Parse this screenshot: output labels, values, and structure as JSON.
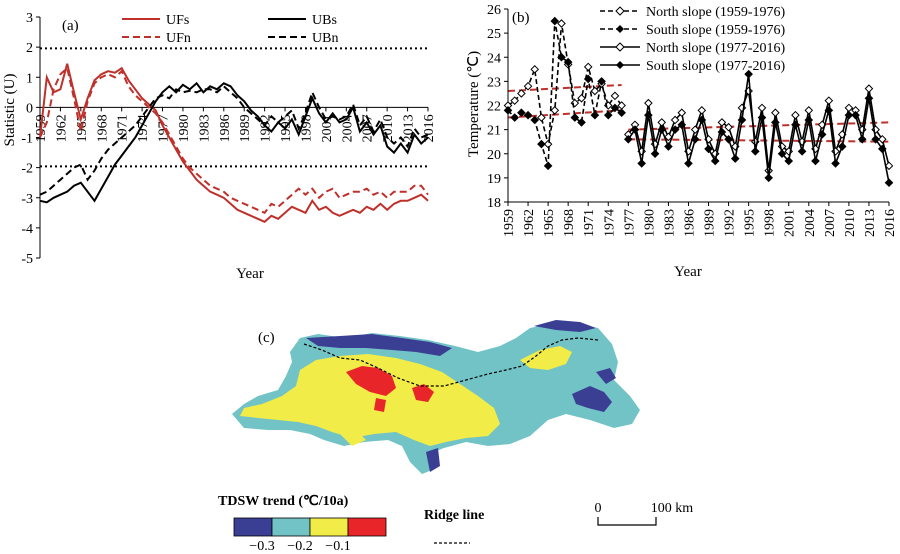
{
  "chart_data": [
    {
      "type": "line",
      "panel_label": "(a)",
      "xlabel": "Year",
      "ylabel": "Statistic (U)",
      "ylim": [
        -5,
        3
      ],
      "yticks": [
        "3",
        "2",
        "1",
        "0",
        "-1",
        "-2",
        "-3",
        "-4",
        "-5"
      ],
      "xlim": [
        1959,
        2016
      ],
      "xticks": [
        "1959",
        "1962",
        "1965",
        "1968",
        "1971",
        "1974",
        "1977",
        "1980",
        "1983",
        "1986",
        "1989",
        "1992",
        "1995",
        "1998",
        "2001",
        "2004",
        "2007",
        "2010",
        "2013",
        "2016"
      ],
      "reference_lines": [
        1.96,
        -1.96
      ],
      "legend": [
        "UFs",
        "UBs",
        "UFn",
        "UBn"
      ],
      "legend_placement": "top",
      "series": [
        {
          "name": "UFs",
          "color": "#c0302a",
          "dash": "solid",
          "x": [
            1959,
            1960,
            1961,
            1962,
            1963,
            1964,
            1965,
            1966,
            1967,
            1968,
            1969,
            1970,
            1971,
            1972,
            1973,
            1974,
            1975,
            1976,
            1977,
            1978,
            1979,
            1980,
            1981,
            1982,
            1983,
            1984,
            1985,
            1986,
            1987,
            1988,
            1989,
            1990,
            1991,
            1992,
            1993,
            1994,
            1995,
            1996,
            1997,
            1998,
            1999,
            2000,
            2001,
            2002,
            2003,
            2004,
            2005,
            2006,
            2007,
            2008,
            2009,
            2010,
            2011,
            2012,
            2013,
            2014,
            2015,
            2016
          ],
          "y": [
            -1.0,
            1.0,
            0.5,
            0.6,
            1.45,
            0.5,
            -0.4,
            0.3,
            0.9,
            1.1,
            1.2,
            1.15,
            1.3,
            0.9,
            0.6,
            0.3,
            0.1,
            -0.1,
            -0.6,
            -1.0,
            -1.4,
            -1.8,
            -2.1,
            -2.4,
            -2.6,
            -2.8,
            -2.9,
            -3.0,
            -3.2,
            -3.4,
            -3.5,
            -3.6,
            -3.7,
            -3.8,
            -3.6,
            -3.7,
            -3.5,
            -3.3,
            -3.4,
            -3.5,
            -3.1,
            -3.4,
            -3.3,
            -3.5,
            -3.6,
            -3.5,
            -3.4,
            -3.5,
            -3.3,
            -3.4,
            -3.2,
            -3.4,
            -3.2,
            -3.1,
            -3.1,
            -3.0,
            -2.9,
            -3.1
          ]
        },
        {
          "name": "UFn",
          "color": "#c0302a",
          "dash": "dash",
          "x": [
            1959,
            1960,
            1961,
            1962,
            1963,
            1964,
            1965,
            1966,
            1967,
            1968,
            1969,
            1970,
            1971,
            1972,
            1973,
            1974,
            1975,
            1976,
            1977,
            1978,
            1979,
            1980,
            1981,
            1982,
            1983,
            1984,
            1985,
            1986,
            1987,
            1988,
            1989,
            1990,
            1991,
            1992,
            1993,
            1994,
            1995,
            1996,
            1997,
            1998,
            1999,
            2000,
            2001,
            2002,
            2003,
            2004,
            2005,
            2006,
            2007,
            2008,
            2009,
            2010,
            2011,
            2012,
            2013,
            2014,
            2015,
            2016
          ],
          "y": [
            -1.0,
            -0.5,
            0.6,
            1.1,
            1.3,
            0.3,
            -0.8,
            0.2,
            0.8,
            1.0,
            1.1,
            1.0,
            1.2,
            0.7,
            0.4,
            0.2,
            0.0,
            -0.2,
            -0.5,
            -0.9,
            -1.3,
            -1.7,
            -2.0,
            -2.2,
            -2.4,
            -2.6,
            -2.7,
            -2.8,
            -3.0,
            -3.1,
            -3.2,
            -3.3,
            -3.4,
            -3.5,
            -3.2,
            -3.3,
            -3.1,
            -2.9,
            -2.7,
            -2.9,
            -2.7,
            -3.0,
            -2.8,
            -2.7,
            -3.0,
            -2.9,
            -2.8,
            -2.8,
            -2.7,
            -2.9,
            -2.8,
            -3.0,
            -2.8,
            -2.8,
            -2.8,
            -2.6,
            -2.6,
            -2.9
          ]
        },
        {
          "name": "UBs",
          "color": "#000000",
          "dash": "solid",
          "x": [
            1959,
            1960,
            1961,
            1962,
            1963,
            1964,
            1965,
            1966,
            1967,
            1968,
            1969,
            1970,
            1971,
            1972,
            1973,
            1974,
            1975,
            1976,
            1977,
            1978,
            1979,
            1980,
            1981,
            1982,
            1983,
            1984,
            1985,
            1986,
            1987,
            1988,
            1989,
            1990,
            1991,
            1992,
            1993,
            1994,
            1995,
            1996,
            1997,
            1998,
            1999,
            2000,
            2001,
            2002,
            2003,
            2004,
            2005,
            2006,
            2007,
            2008,
            2009,
            2010,
            2011,
            2012,
            2013,
            2014,
            2015,
            2016
          ],
          "y": [
            -3.1,
            -3.15,
            -3.0,
            -2.9,
            -2.8,
            -2.6,
            -2.5,
            -2.8,
            -3.1,
            -2.7,
            -2.3,
            -1.9,
            -1.6,
            -1.3,
            -1.0,
            -0.6,
            -0.2,
            0.2,
            0.5,
            0.7,
            0.5,
            0.75,
            0.6,
            0.8,
            0.5,
            0.7,
            0.6,
            0.8,
            0.7,
            0.4,
            0.2,
            -0.1,
            -0.3,
            -0.6,
            -0.8,
            -0.5,
            -0.7,
            -0.4,
            -0.9,
            -0.3,
            0.3,
            -0.2,
            -0.5,
            -0.2,
            -0.5,
            -0.4,
            0.0,
            -0.8,
            -0.5,
            -0.9,
            -0.6,
            -1.3,
            -1.5,
            -1.2,
            -1.5,
            -0.9,
            -1.2,
            -1.0
          ]
        },
        {
          "name": "UBn",
          "color": "#000000",
          "dash": "dash",
          "x": [
            1959,
            1960,
            1961,
            1962,
            1963,
            1964,
            1965,
            1966,
            1967,
            1968,
            1969,
            1970,
            1971,
            1972,
            1973,
            1974,
            1975,
            1976,
            1977,
            1978,
            1979,
            1980,
            1981,
            1982,
            1983,
            1984,
            1985,
            1986,
            1987,
            1988,
            1989,
            1990,
            1991,
            1992,
            1993,
            1994,
            1995,
            1996,
            1997,
            1998,
            1999,
            2000,
            2001,
            2002,
            2003,
            2004,
            2005,
            2006,
            2007,
            2008,
            2009,
            2010,
            2011,
            2012,
            2013,
            2014,
            2015,
            2016
          ],
          "y": [
            -2.9,
            -2.8,
            -2.6,
            -2.4,
            -2.2,
            -2.0,
            -1.9,
            -2.4,
            -2.1,
            -1.7,
            -1.4,
            -1.2,
            -1.0,
            -0.8,
            -0.6,
            -0.3,
            0.0,
            0.3,
            0.4,
            0.3,
            0.6,
            0.5,
            0.55,
            0.5,
            0.6,
            0.6,
            0.5,
            0.7,
            0.5,
            0.3,
            0.0,
            -0.2,
            -0.4,
            -0.6,
            -0.3,
            -0.5,
            -0.3,
            -0.1,
            -0.7,
            -0.2,
            0.5,
            0.0,
            -0.4,
            -0.3,
            -0.4,
            -0.3,
            0.1,
            -0.6,
            -0.3,
            -0.8,
            -0.4,
            -1.0,
            -1.2,
            -1.0,
            -1.3,
            -0.7,
            -1.0,
            -0.9
          ]
        }
      ]
    },
    {
      "type": "line",
      "panel_label": "(b)",
      "xlabel": "Year",
      "ylabel": "Temperature (℃)",
      "ylim": [
        18,
        26
      ],
      "yticks": [
        "26",
        "25",
        "24",
        "23",
        "22",
        "21",
        "20",
        "19",
        "18"
      ],
      "xlim": [
        1959,
        2016
      ],
      "xticks": [
        "1959",
        "1962",
        "1965",
        "1968",
        "1971",
        "1974",
        "1977",
        "1980",
        "1983",
        "1986",
        "1989",
        "1992",
        "1995",
        "1998",
        "2001",
        "2004",
        "2007",
        "2010",
        "2013",
        "2016"
      ],
      "legend": [
        "North slope (1959-1976)",
        "South slope (1959-1976)",
        "North slope (1977-2016)",
        "South slope (1977-2016)"
      ],
      "legend_placement": "top-right",
      "series": [
        {
          "name": "North slope (1959-1976)",
          "color": "#000000",
          "dash": "dash",
          "marker": "diamond-open",
          "x": [
            1959,
            1960,
            1961,
            1962,
            1963,
            1964,
            1965,
            1966,
            1967,
            1968,
            1969,
            1970,
            1971,
            1972,
            1973,
            1974,
            1975,
            1976
          ],
          "y": [
            22.0,
            22.2,
            22.5,
            22.8,
            23.5,
            21.5,
            20.4,
            21.8,
            25.4,
            23.7,
            22.1,
            22.3,
            23.6,
            22.6,
            22.9,
            22.0,
            22.4,
            22.0
          ]
        },
        {
          "name": "South slope (1959-1976)",
          "color": "#000000",
          "dash": "dash",
          "marker": "diamond-filled",
          "x": [
            1959,
            1960,
            1961,
            1962,
            1963,
            1964,
            1965,
            1966,
            1967,
            1968,
            1969,
            1970,
            1971,
            1972,
            1973,
            1974,
            1975,
            1976
          ],
          "y": [
            21.8,
            21.5,
            21.7,
            21.6,
            21.4,
            20.4,
            19.5,
            25.5,
            24.0,
            23.8,
            21.5,
            21.3,
            23.1,
            21.6,
            23.0,
            21.6,
            21.9,
            21.7
          ]
        },
        {
          "name": "North slope (1977-2016)",
          "color": "#000000",
          "dash": "solid",
          "marker": "diamond-open",
          "x": [
            1977,
            1978,
            1979,
            1980,
            1981,
            1982,
            1983,
            1984,
            1985,
            1986,
            1987,
            1988,
            1989,
            1990,
            1991,
            1992,
            1993,
            1994,
            1995,
            1996,
            1997,
            1998,
            1999,
            2000,
            2001,
            2002,
            2003,
            2004,
            2005,
            2006,
            2007,
            2008,
            2009,
            2010,
            2011,
            2012,
            2013,
            2014,
            2015,
            2016
          ],
          "y": [
            20.8,
            21.2,
            20.1,
            22.1,
            20.4,
            21.3,
            20.7,
            21.4,
            21.7,
            20.1,
            21.0,
            21.8,
            20.6,
            20.0,
            21.3,
            21.1,
            20.3,
            21.9,
            22.6,
            20.5,
            21.9,
            19.3,
            21.7,
            20.3,
            20.1,
            21.6,
            20.5,
            21.8,
            20.2,
            21.2,
            22.2,
            20.1,
            20.8,
            21.9,
            21.8,
            21.0,
            22.7,
            21.0,
            20.6,
            19.5
          ]
        },
        {
          "name": "South slope (1977-2016)",
          "color": "#000000",
          "dash": "solid",
          "marker": "diamond-filled",
          "x": [
            1977,
            1978,
            1979,
            1980,
            1981,
            1982,
            1983,
            1984,
            1985,
            1986,
            1987,
            1988,
            1989,
            1990,
            1991,
            1992,
            1993,
            1994,
            1995,
            1996,
            1997,
            1998,
            1999,
            2000,
            2001,
            2002,
            2003,
            2004,
            2005,
            2006,
            2007,
            2008,
            2009,
            2010,
            2011,
            2012,
            2013,
            2014,
            2015,
            2016
          ],
          "y": [
            20.6,
            21.0,
            19.6,
            21.6,
            20.0,
            21.0,
            20.3,
            21.0,
            21.2,
            19.6,
            20.6,
            21.4,
            20.2,
            19.7,
            20.9,
            20.6,
            19.8,
            21.4,
            23.3,
            20.1,
            21.5,
            19.0,
            21.3,
            20.0,
            19.7,
            21.2,
            20.1,
            21.4,
            19.7,
            20.8,
            21.8,
            19.6,
            20.3,
            21.6,
            21.6,
            20.6,
            22.3,
            20.6,
            20.2,
            18.8
          ]
        }
      ],
      "trend_lines": [
        {
          "color": "#c0302a",
          "x": [
            1959,
            1976
          ],
          "y": [
            22.6,
            22.85
          ]
        },
        {
          "color": "#c0302a",
          "x": [
            1959,
            1976
          ],
          "y": [
            21.5,
            21.8
          ]
        },
        {
          "color": "#c0302a",
          "x": [
            1977,
            2016
          ],
          "y": [
            21.0,
            21.3
          ]
        },
        {
          "color": "#c0302a",
          "x": [
            1977,
            2016
          ],
          "y": [
            20.6,
            20.5
          ]
        }
      ]
    },
    {
      "type": "heatmap",
      "panel_label": "(c)",
      "legend_title": "TDSW trend (℃/10a)",
      "legend_classes": [
        {
          "color": "#3b3f94"
        },
        {
          "color": "#71c3c6"
        },
        {
          "color": "#f2ec48"
        },
        {
          "color": "#e8262a"
        }
      ],
      "legend_tick_labels": [
        "−0.3",
        "−0.2",
        "−0.1"
      ],
      "ridge_label": "Ridge line",
      "scale_bar": {
        "start": "0",
        "end": "100 km"
      }
    }
  ]
}
